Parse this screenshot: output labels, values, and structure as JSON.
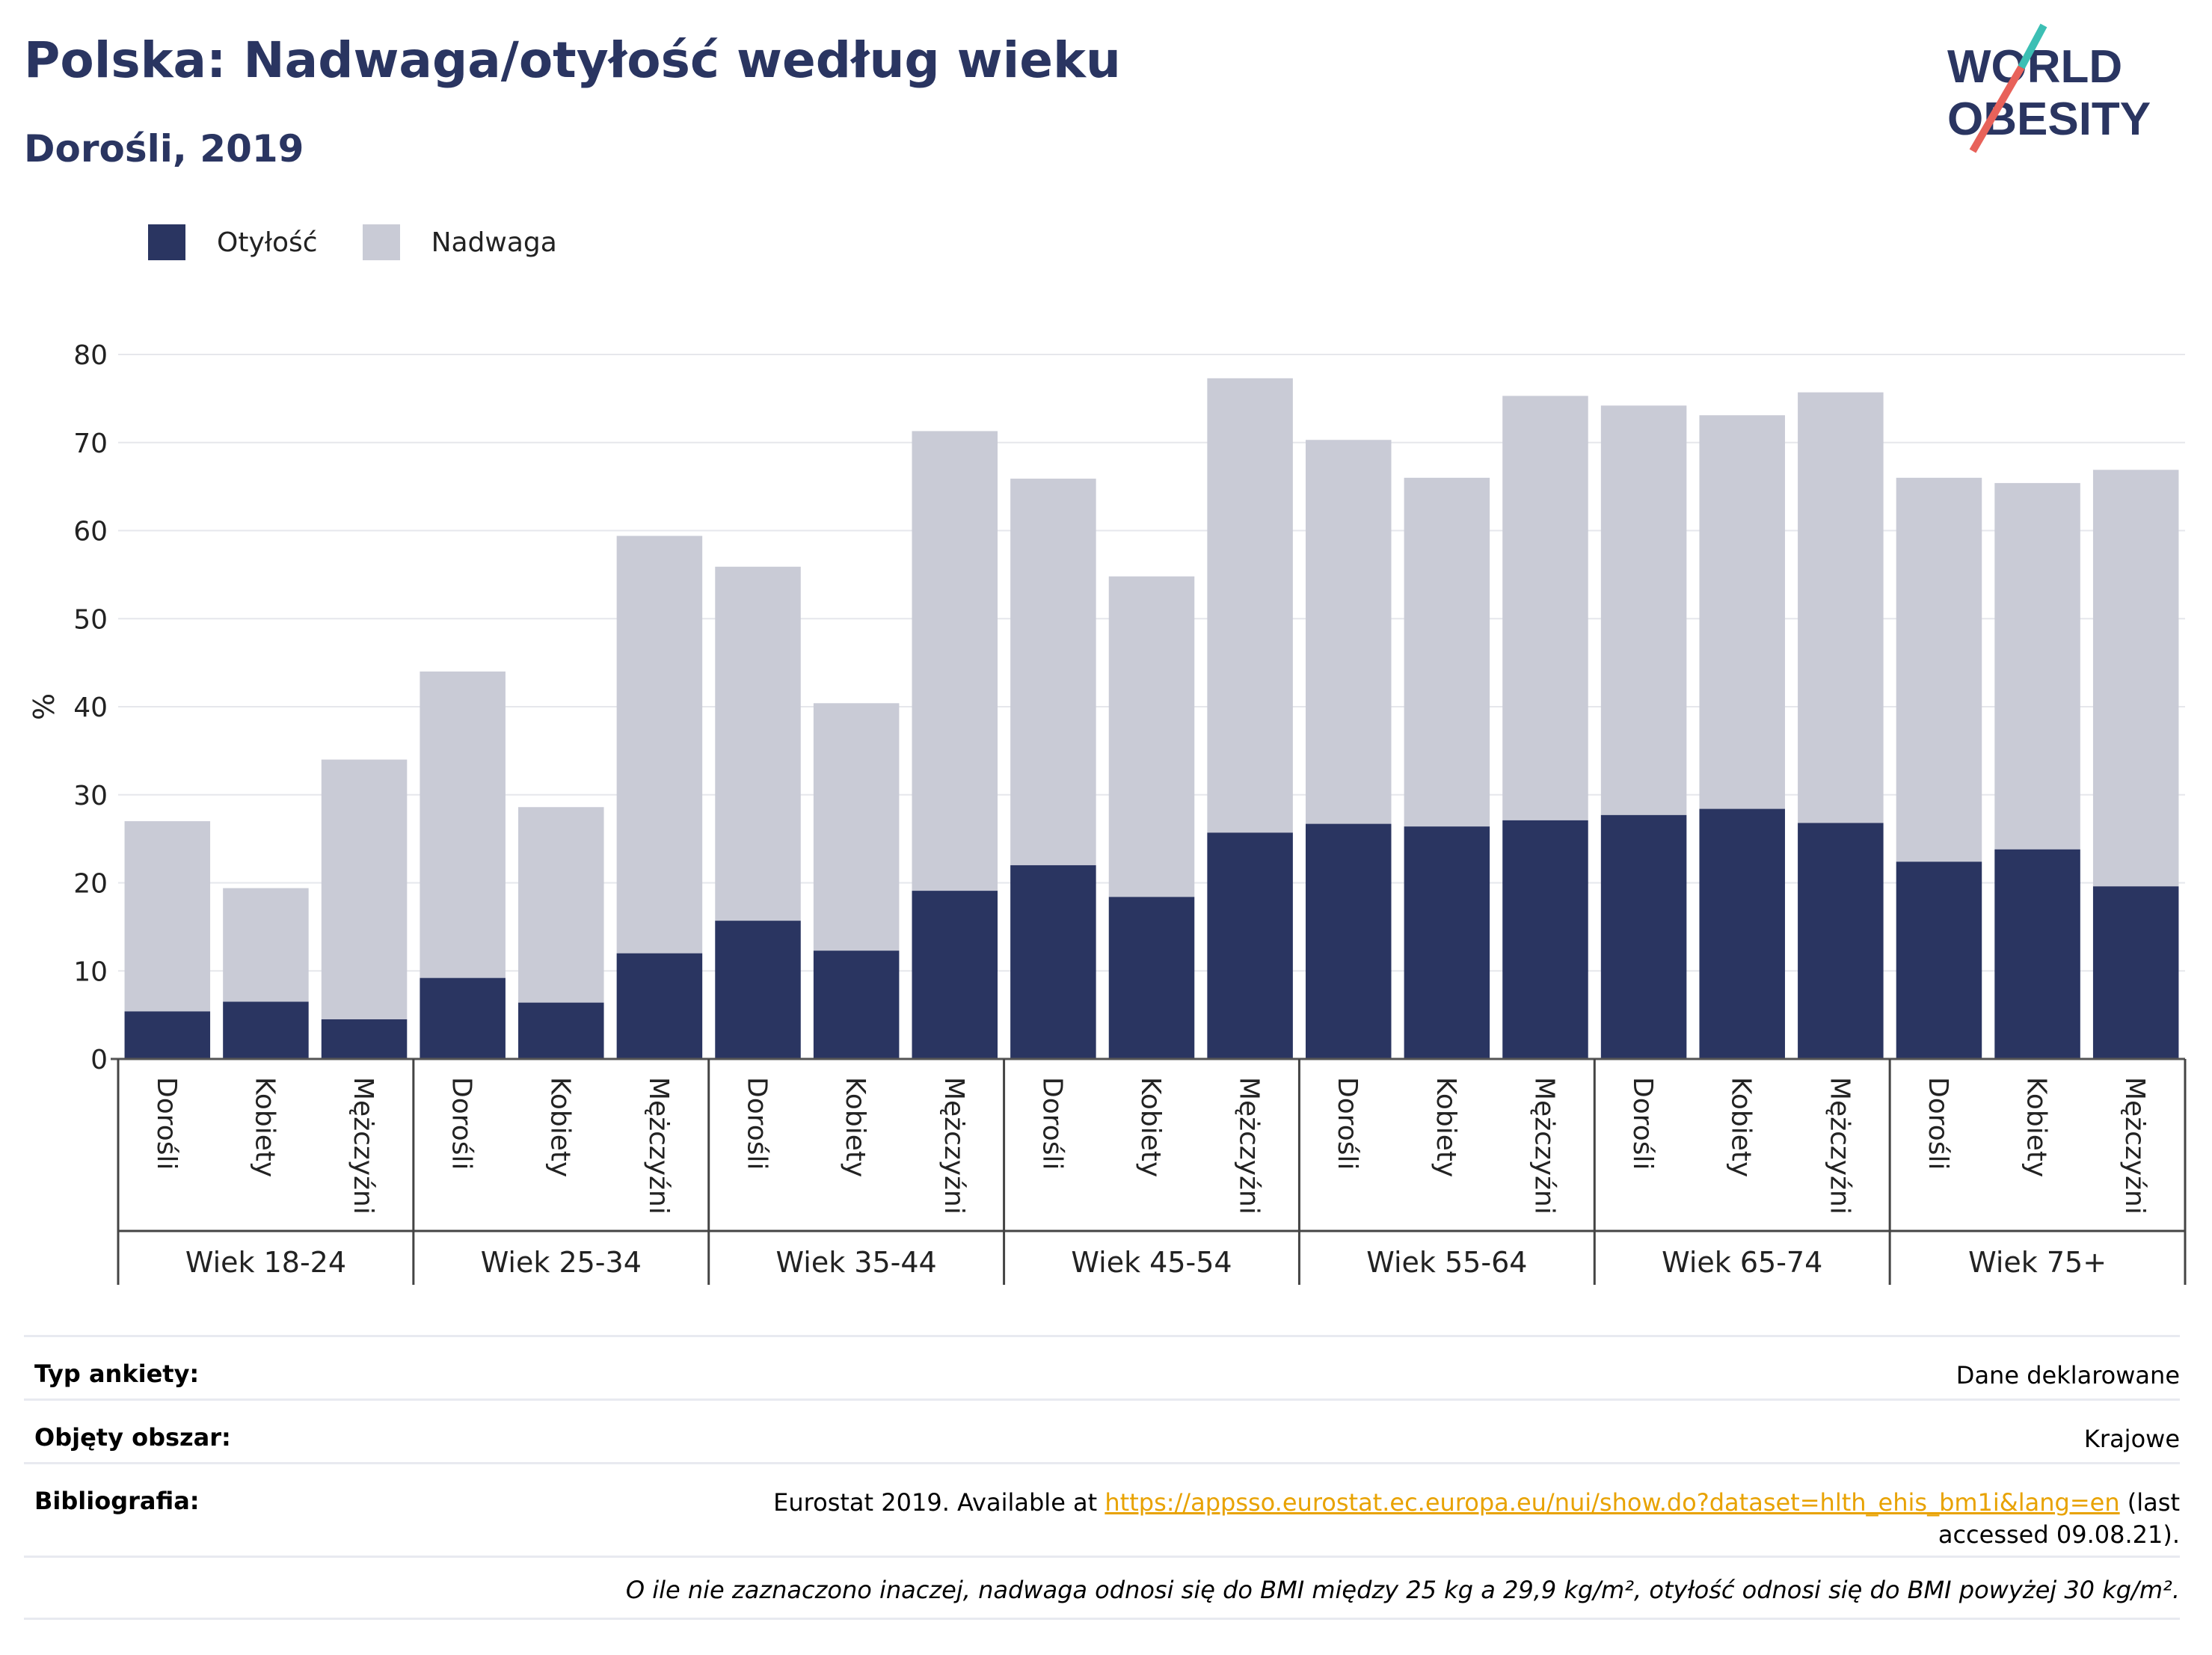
{
  "title": "Polska: Nadwaga/otyłość według wieku",
  "subtitle": "Dorośli, 2019",
  "logo": {
    "line1": "WORLD",
    "line2": "OBESITY"
  },
  "legend": {
    "obesity": "Otyłość",
    "overweight": "Nadwaga"
  },
  "colors": {
    "obesity": "#2a3561",
    "overweight": "#c9cbd6",
    "accent": "#e8a200",
    "logo_red": "#e8625a",
    "logo_teal": "#3cbfb4"
  },
  "chart_data": {
    "type": "bar",
    "stacked": true,
    "ylabel": "%",
    "ylim": [
      0,
      80
    ],
    "yticks": [
      0,
      10,
      20,
      30,
      40,
      50,
      60,
      70,
      80
    ],
    "grid": true,
    "legend_position": "top-left",
    "groups": [
      "Wiek 18-24",
      "Wiek 25-34",
      "Wiek 35-44",
      "Wiek 45-54",
      "Wiek 55-64",
      "Wiek 65-74",
      "Wiek 75+"
    ],
    "subcategories": [
      "Dorośli",
      "Kobiety",
      "Mężczyźni"
    ],
    "series": [
      {
        "name": "Otyłość",
        "values": [
          5.4,
          6.5,
          4.5,
          9.2,
          6.4,
          12.0,
          15.7,
          12.3,
          19.1,
          22.0,
          18.4,
          25.7,
          26.7,
          26.4,
          27.1,
          27.7,
          28.4,
          26.8,
          22.4,
          23.8,
          19.6
        ]
      },
      {
        "name": "Nadwaga",
        "values": [
          21.6,
          12.9,
          29.5,
          34.8,
          22.2,
          47.4,
          40.2,
          28.1,
          52.2,
          43.9,
          36.4,
          51.6,
          43.6,
          39.6,
          48.2,
          46.5,
          44.7,
          48.9,
          43.6,
          41.6,
          47.3
        ]
      }
    ]
  },
  "info": {
    "survey_type_label": "Typ ankiety:",
    "survey_type_value": "Dane deklarowane",
    "area_label": "Objęty obszar:",
    "area_value": "Krajowe",
    "bibliography_label": "Bibliografia:",
    "bibliography_prefix": "Eurostat 2019. Available at",
    "bibliography_link": "https://appsso.eurostat.ec.europa.eu/nui/show.do?dataset=hlth_ehis_bm1i&lang=en",
    "bibliography_suffix": "(last accessed 09.08.21).",
    "note": "O ile nie zaznaczono inaczej, nadwaga odnosi się do BMI między 25 kg a 29,9 kg/m², otyłość odnosi się do BMI powyżej 30 kg/m²."
  }
}
